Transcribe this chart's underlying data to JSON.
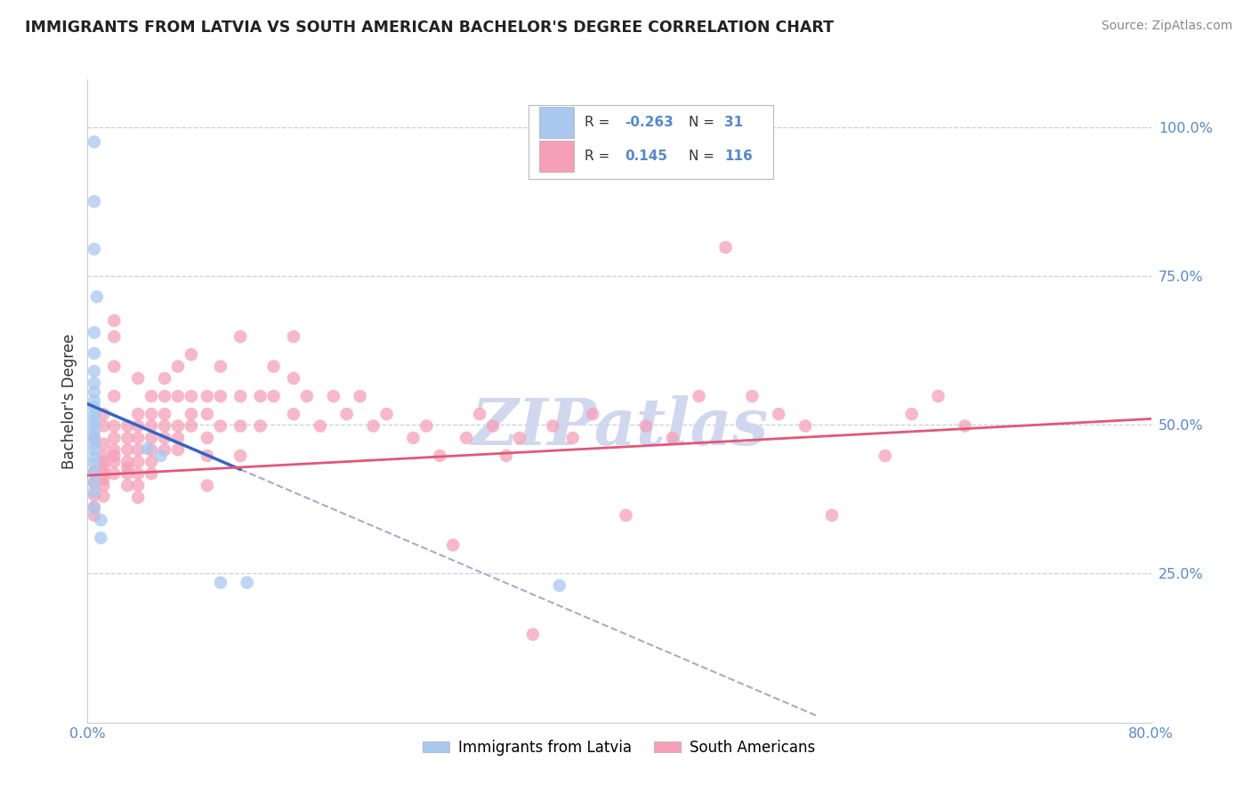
{
  "title": "IMMIGRANTS FROM LATVIA VS SOUTH AMERICAN BACHELOR'S DEGREE CORRELATION CHART",
  "source": "Source: ZipAtlas.com",
  "ylabel": "Bachelor's Degree",
  "ytick_labels": [
    "25.0%",
    "50.0%",
    "75.0%",
    "100.0%"
  ],
  "ytick_values": [
    0.25,
    0.5,
    0.75,
    1.0
  ],
  "xlim": [
    0.0,
    0.8
  ],
  "ylim": [
    0.0,
    1.08
  ],
  "color_blue": "#A8C8F0",
  "color_pink": "#F5A0B8",
  "line_blue": "#3464C8",
  "line_blue_dash": "#AAAACC",
  "line_pink": "#E05878",
  "watermark_color": "#D0D8F0",
  "grid_color": "#CCCCDD",
  "title_color": "#222222",
  "source_color": "#888888",
  "tick_color": "#5588CC",
  "blue_scatter": [
    [
      0.005,
      0.975
    ],
    [
      0.005,
      0.875
    ],
    [
      0.005,
      0.795
    ],
    [
      0.007,
      0.715
    ],
    [
      0.005,
      0.655
    ],
    [
      0.005,
      0.62
    ],
    [
      0.005,
      0.59
    ],
    [
      0.005,
      0.57
    ],
    [
      0.005,
      0.555
    ],
    [
      0.005,
      0.54
    ],
    [
      0.005,
      0.53
    ],
    [
      0.005,
      0.518
    ],
    [
      0.005,
      0.508
    ],
    [
      0.005,
      0.498
    ],
    [
      0.005,
      0.488
    ],
    [
      0.005,
      0.478
    ],
    [
      0.005,
      0.468
    ],
    [
      0.005,
      0.458
    ],
    [
      0.005,
      0.445
    ],
    [
      0.005,
      0.435
    ],
    [
      0.005,
      0.42
    ],
    [
      0.005,
      0.405
    ],
    [
      0.005,
      0.388
    ],
    [
      0.005,
      0.36
    ],
    [
      0.01,
      0.34
    ],
    [
      0.01,
      0.31
    ],
    [
      0.045,
      0.46
    ],
    [
      0.055,
      0.448
    ],
    [
      0.1,
      0.235
    ],
    [
      0.12,
      0.235
    ],
    [
      0.355,
      0.23
    ]
  ],
  "pink_scatter": [
    [
      0.005,
      0.478
    ],
    [
      0.005,
      0.422
    ],
    [
      0.005,
      0.402
    ],
    [
      0.005,
      0.382
    ],
    [
      0.005,
      0.362
    ],
    [
      0.005,
      0.348
    ],
    [
      0.012,
      0.518
    ],
    [
      0.012,
      0.498
    ],
    [
      0.012,
      0.468
    ],
    [
      0.012,
      0.448
    ],
    [
      0.012,
      0.438
    ],
    [
      0.012,
      0.428
    ],
    [
      0.012,
      0.418
    ],
    [
      0.012,
      0.408
    ],
    [
      0.012,
      0.398
    ],
    [
      0.012,
      0.38
    ],
    [
      0.02,
      0.675
    ],
    [
      0.02,
      0.648
    ],
    [
      0.02,
      0.598
    ],
    [
      0.02,
      0.548
    ],
    [
      0.02,
      0.498
    ],
    [
      0.02,
      0.478
    ],
    [
      0.02,
      0.458
    ],
    [
      0.02,
      0.448
    ],
    [
      0.02,
      0.438
    ],
    [
      0.02,
      0.418
    ],
    [
      0.03,
      0.498
    ],
    [
      0.03,
      0.478
    ],
    [
      0.03,
      0.458
    ],
    [
      0.03,
      0.438
    ],
    [
      0.03,
      0.428
    ],
    [
      0.03,
      0.418
    ],
    [
      0.03,
      0.398
    ],
    [
      0.038,
      0.578
    ],
    [
      0.038,
      0.518
    ],
    [
      0.038,
      0.498
    ],
    [
      0.038,
      0.478
    ],
    [
      0.038,
      0.458
    ],
    [
      0.038,
      0.438
    ],
    [
      0.038,
      0.418
    ],
    [
      0.038,
      0.398
    ],
    [
      0.038,
      0.378
    ],
    [
      0.048,
      0.548
    ],
    [
      0.048,
      0.518
    ],
    [
      0.048,
      0.498
    ],
    [
      0.048,
      0.478
    ],
    [
      0.048,
      0.458
    ],
    [
      0.048,
      0.438
    ],
    [
      0.048,
      0.418
    ],
    [
      0.058,
      0.578
    ],
    [
      0.058,
      0.548
    ],
    [
      0.058,
      0.518
    ],
    [
      0.058,
      0.498
    ],
    [
      0.058,
      0.478
    ],
    [
      0.058,
      0.458
    ],
    [
      0.068,
      0.598
    ],
    [
      0.068,
      0.548
    ],
    [
      0.068,
      0.498
    ],
    [
      0.068,
      0.478
    ],
    [
      0.068,
      0.458
    ],
    [
      0.078,
      0.618
    ],
    [
      0.078,
      0.548
    ],
    [
      0.078,
      0.518
    ],
    [
      0.078,
      0.498
    ],
    [
      0.09,
      0.548
    ],
    [
      0.09,
      0.518
    ],
    [
      0.09,
      0.478
    ],
    [
      0.09,
      0.448
    ],
    [
      0.09,
      0.398
    ],
    [
      0.1,
      0.598
    ],
    [
      0.1,
      0.548
    ],
    [
      0.1,
      0.498
    ],
    [
      0.115,
      0.648
    ],
    [
      0.115,
      0.548
    ],
    [
      0.115,
      0.498
    ],
    [
      0.115,
      0.448
    ],
    [
      0.13,
      0.548
    ],
    [
      0.13,
      0.498
    ],
    [
      0.14,
      0.598
    ],
    [
      0.14,
      0.548
    ],
    [
      0.155,
      0.648
    ],
    [
      0.155,
      0.578
    ],
    [
      0.155,
      0.518
    ],
    [
      0.165,
      0.548
    ],
    [
      0.175,
      0.498
    ],
    [
      0.185,
      0.548
    ],
    [
      0.195,
      0.518
    ],
    [
      0.205,
      0.548
    ],
    [
      0.215,
      0.498
    ],
    [
      0.225,
      0.518
    ],
    [
      0.245,
      0.478
    ],
    [
      0.255,
      0.498
    ],
    [
      0.265,
      0.448
    ],
    [
      0.275,
      0.298
    ],
    [
      0.285,
      0.478
    ],
    [
      0.295,
      0.518
    ],
    [
      0.305,
      0.498
    ],
    [
      0.315,
      0.448
    ],
    [
      0.325,
      0.478
    ],
    [
      0.335,
      0.148
    ],
    [
      0.35,
      0.498
    ],
    [
      0.365,
      0.478
    ],
    [
      0.38,
      0.518
    ],
    [
      0.405,
      0.348
    ],
    [
      0.42,
      0.498
    ],
    [
      0.44,
      0.478
    ],
    [
      0.46,
      0.548
    ],
    [
      0.48,
      0.798
    ],
    [
      0.5,
      0.548
    ],
    [
      0.52,
      0.518
    ],
    [
      0.54,
      0.498
    ],
    [
      0.56,
      0.348
    ],
    [
      0.6,
      0.448
    ],
    [
      0.62,
      0.518
    ],
    [
      0.64,
      0.548
    ],
    [
      0.66,
      0.498
    ]
  ],
  "blue_line_solid": [
    [
      0.0,
      0.535
    ],
    [
      0.115,
      0.425
    ]
  ],
  "blue_line_dash": [
    [
      0.115,
      0.425
    ],
    [
      0.55,
      0.01
    ]
  ],
  "pink_line": [
    [
      0.0,
      0.415
    ],
    [
      0.8,
      0.51
    ]
  ]
}
